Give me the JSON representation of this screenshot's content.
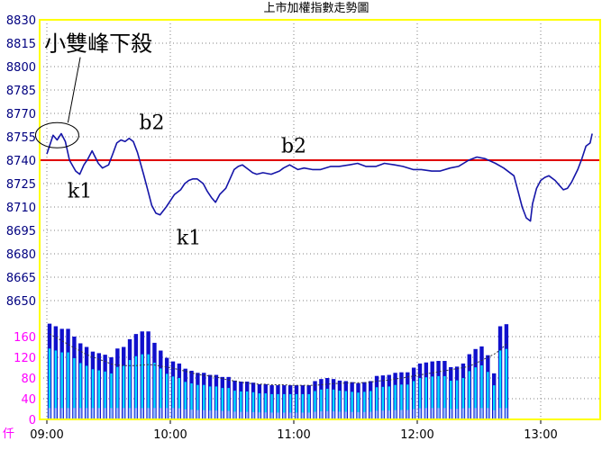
{
  "chart_data": {
    "title": "上市加權指數走勢圖",
    "colors": {
      "price_line": "#1515a8",
      "reference_line": "#e00000",
      "volume_bar_dark": "#1010cc",
      "volume_bar_light": "#00e0ff",
      "volume_bar_pale": "#9ab8ff",
      "price_axis_text": "#000080",
      "volume_axis_text": "#ff00ff",
      "border": "#ffff00",
      "grid": "#808080",
      "ma_line": "#333333"
    },
    "price_panel": {
      "type": "line",
      "y_ticks": [
        8830,
        8815,
        8800,
        8785,
        8770,
        8755,
        8740,
        8725,
        8710,
        8695,
        8680,
        8665,
        8650
      ],
      "ylim": [
        8650,
        8830
      ],
      "reference_value": 8740,
      "x": [
        "09:00",
        "09:03",
        "09:05",
        "09:07",
        "09:09",
        "09:11",
        "09:14",
        "09:16",
        "09:18",
        "09:20",
        "09:22",
        "09:25",
        "09:27",
        "09:30",
        "09:32",
        "09:34",
        "09:36",
        "09:38",
        "09:40",
        "09:42",
        "09:44",
        "09:47",
        "09:49",
        "09:51",
        "09:53",
        "09:55",
        "09:58",
        "10:00",
        "10:02",
        "10:05",
        "10:07",
        "10:09",
        "10:11",
        "10:13",
        "10:16",
        "10:18",
        "10:20",
        "10:22",
        "10:24",
        "10:27",
        "10:29",
        "10:31",
        "10:33",
        "10:35",
        "10:38",
        "10:40",
        "10:42",
        "10:45",
        "10:49",
        "10:53",
        "10:55",
        "10:58",
        "11:02",
        "11:05",
        "11:09",
        "11:13",
        "11:18",
        "11:22",
        "11:27",
        "11:31",
        "11:35",
        "11:40",
        "11:44",
        "11:49",
        "11:53",
        "11:58",
        "12:02",
        "12:07",
        "12:11",
        "12:16",
        "12:20",
        "12:25",
        "12:29",
        "12:33",
        "12:38",
        "12:42",
        "12:47",
        "12:49",
        "12:51",
        "12:53",
        "12:55",
        "12:56",
        "12:58",
        "13:00",
        "13:02",
        "13:04",
        "13:07",
        "13:09",
        "13:11",
        "13:13",
        "13:15",
        "13:18",
        "13:20",
        "13:22",
        "13:24",
        "13:25"
      ],
      "values": [
        8744,
        8756,
        8753,
        8757,
        8752,
        8740,
        8733,
        8731,
        8737,
        8741,
        8746,
        8738,
        8735,
        8737,
        8744,
        8751,
        8753,
        8752,
        8754,
        8752,
        8745,
        8731,
        8721,
        8711,
        8706,
        8705,
        8710,
        8714,
        8718,
        8721,
        8725,
        8727,
        8728,
        8728,
        8725,
        8720,
        8716,
        8713,
        8718,
        8722,
        8728,
        8734,
        8736,
        8737,
        8734,
        8732,
        8731,
        8732,
        8731,
        8733,
        8735,
        8737,
        8734,
        8735,
        8734,
        8734,
        8736,
        8736,
        8737,
        8738,
        8736,
        8736,
        8738,
        8737,
        8736,
        8734,
        8734,
        8733,
        8733,
        8735,
        8736,
        8740,
        8742,
        8741,
        8738,
        8735,
        8730,
        8720,
        8710,
        8703,
        8701,
        8712,
        8722,
        8727,
        8729,
        8730,
        8727,
        8724,
        8721,
        8722,
        8726,
        8734,
        8741,
        8749,
        8751,
        8757
      ]
    },
    "volume_panel": {
      "type": "bar",
      "unit_label": "仟",
      "y_ticks": [
        0,
        40,
        80,
        120,
        160
      ],
      "ylim": [
        0,
        200
      ],
      "values": [
        185,
        180,
        175,
        175,
        160,
        147,
        140,
        131,
        128,
        125,
        120,
        137,
        140,
        155,
        165,
        170,
        170,
        148,
        133,
        119,
        112,
        108,
        98,
        94,
        90,
        90,
        86,
        86,
        82,
        82,
        75,
        73,
        73,
        71,
        68,
        68,
        66,
        66,
        66,
        66,
        66,
        66,
        66,
        74,
        78,
        80,
        78,
        75,
        74,
        72,
        70,
        72,
        74,
        84,
        85,
        86,
        90,
        91,
        91,
        100,
        108,
        110,
        112,
        113,
        113,
        101,
        102,
        108,
        126,
        136,
        141,
        124,
        89,
        180,
        184
      ],
      "ma_values": [
        165,
        158,
        152,
        145,
        138,
        132,
        125,
        121,
        116,
        112,
        107,
        105,
        104,
        104,
        104,
        105,
        106,
        105,
        103,
        101,
        99,
        96,
        93,
        90,
        87,
        85,
        84,
        82,
        79,
        76,
        74,
        72,
        70,
        69,
        68,
        68,
        67,
        67,
        67,
        66,
        66,
        66,
        66,
        66,
        67,
        68,
        69,
        70,
        70,
        71,
        71,
        71,
        72,
        74,
        75,
        76,
        78,
        80,
        82,
        84,
        86,
        88,
        90,
        92,
        94,
        96,
        98,
        100,
        103,
        108,
        114,
        120,
        126,
        134,
        146
      ]
    },
    "x_axis": {
      "ticks": [
        "09:00",
        "10:00",
        "11:00",
        "12:00",
        "13:00"
      ]
    },
    "annotations": [
      {
        "text": "小雙峰下殺",
        "x": "09:25",
        "y": 8810
      },
      {
        "text": "b2",
        "x": "09:51",
        "y": 8760
      },
      {
        "text": "b2",
        "x": "11:00",
        "y": 8745
      },
      {
        "text": "k1",
        "x": "09:16",
        "y": 8716
      },
      {
        "text": "k1",
        "x": "10:09",
        "y": 8686
      }
    ]
  }
}
